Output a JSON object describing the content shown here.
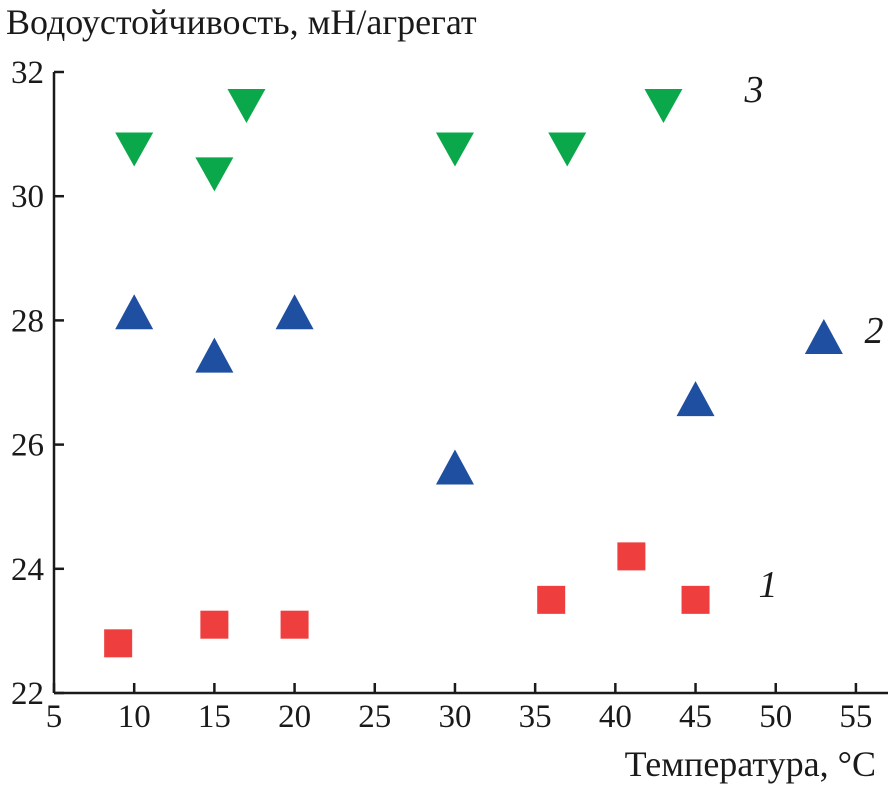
{
  "chart_data": {
    "type": "scatter",
    "title": "",
    "ylabel": "Водоустойчивость, мН/агрегат",
    "xlabel": "Температура, °С",
    "xlim": [
      5,
      57
    ],
    "ylim": [
      22,
      32
    ],
    "xticks": [
      5,
      10,
      15,
      20,
      25,
      30,
      35,
      40,
      45,
      50,
      55
    ],
    "yticks": [
      22,
      24,
      26,
      28,
      30,
      32
    ],
    "grid": false,
    "series": [
      {
        "name": "1",
        "marker": "square",
        "color": "#ee3e3e",
        "x": [
          9,
          15,
          20,
          36,
          41,
          45
        ],
        "y": [
          22.8,
          23.1,
          23.1,
          23.5,
          24.2,
          23.5
        ]
      },
      {
        "name": "2",
        "marker": "triangle-up",
        "color": "#1e4fa0",
        "x": [
          10,
          15,
          20,
          30,
          45,
          53
        ],
        "y": [
          28.1,
          27.4,
          28.1,
          25.6,
          26.7,
          27.7
        ]
      },
      {
        "name": "3",
        "marker": "triangle-down",
        "color": "#0aa84a",
        "x": [
          10,
          15,
          17,
          30,
          37,
          43
        ],
        "y": [
          30.8,
          30.4,
          31.5,
          30.8,
          30.8,
          31.5
        ]
      }
    ]
  }
}
